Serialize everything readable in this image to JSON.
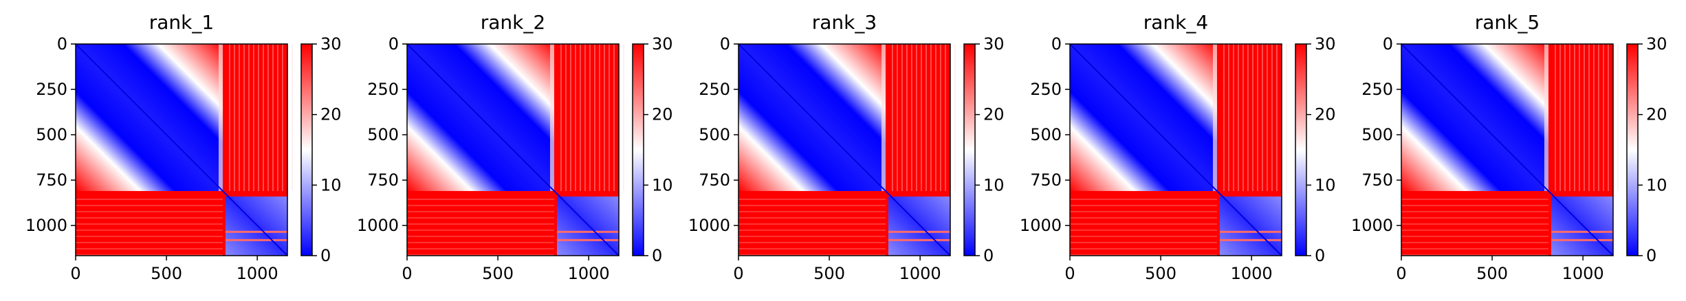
{
  "chart_data": [
    {
      "type": "heatmap",
      "title": "rank_1",
      "xticks": [
        "0",
        "500",
        "1000"
      ],
      "yticks": [
        "0",
        "250",
        "500",
        "750",
        "1000"
      ],
      "xlim": [
        0,
        1166
      ],
      "ylim": [
        1166,
        0
      ],
      "block_boundary": 810,
      "colorbar": {
        "range": [
          0,
          30
        ],
        "ticks": [
          "0",
          "10",
          "20",
          "30"
        ],
        "colormap": "bwr",
        "colors": [
          "#0000ff",
          "#ffffff",
          "#ff0000"
        ]
      }
    },
    {
      "type": "heatmap",
      "title": "rank_2",
      "xticks": [
        "0",
        "500",
        "1000"
      ],
      "yticks": [
        "0",
        "250",
        "500",
        "750",
        "1000"
      ],
      "xlim": [
        0,
        1166
      ],
      "ylim": [
        1166,
        0
      ],
      "block_boundary": 810,
      "colorbar": {
        "range": [
          0,
          30
        ],
        "ticks": [
          "0",
          "10",
          "20",
          "30"
        ],
        "colormap": "bwr",
        "colors": [
          "#0000ff",
          "#ffffff",
          "#ff0000"
        ]
      }
    },
    {
      "type": "heatmap",
      "title": "rank_3",
      "xticks": [
        "0",
        "500",
        "1000"
      ],
      "yticks": [
        "0",
        "250",
        "500",
        "750",
        "1000"
      ],
      "xlim": [
        0,
        1166
      ],
      "ylim": [
        1166,
        0
      ],
      "block_boundary": 810,
      "colorbar": {
        "range": [
          0,
          30
        ],
        "ticks": [
          "0",
          "10",
          "20",
          "30"
        ],
        "colormap": "bwr",
        "colors": [
          "#0000ff",
          "#ffffff",
          "#ff0000"
        ]
      }
    },
    {
      "type": "heatmap",
      "title": "rank_4",
      "xticks": [
        "0",
        "500",
        "1000"
      ],
      "yticks": [
        "0",
        "250",
        "500",
        "750",
        "1000"
      ],
      "xlim": [
        0,
        1166
      ],
      "ylim": [
        1166,
        0
      ],
      "block_boundary": 810,
      "colorbar": {
        "range": [
          0,
          30
        ],
        "ticks": [
          "0",
          "10",
          "20",
          "30"
        ],
        "colormap": "bwr",
        "colors": [
          "#0000ff",
          "#ffffff",
          "#ff0000"
        ]
      }
    },
    {
      "type": "heatmap",
      "title": "rank_5",
      "xticks": [
        "0",
        "500",
        "1000"
      ],
      "yticks": [
        "0",
        "250",
        "500",
        "750",
        "1000"
      ],
      "xlim": [
        0,
        1166
      ],
      "ylim": [
        1166,
        0
      ],
      "block_boundary": 810,
      "colorbar": {
        "range": [
          0,
          30
        ],
        "ticks": [
          "0",
          "10",
          "20",
          "30"
        ],
        "colormap": "bwr",
        "colors": [
          "#0000ff",
          "#ffffff",
          "#ff0000"
        ]
      }
    }
  ]
}
